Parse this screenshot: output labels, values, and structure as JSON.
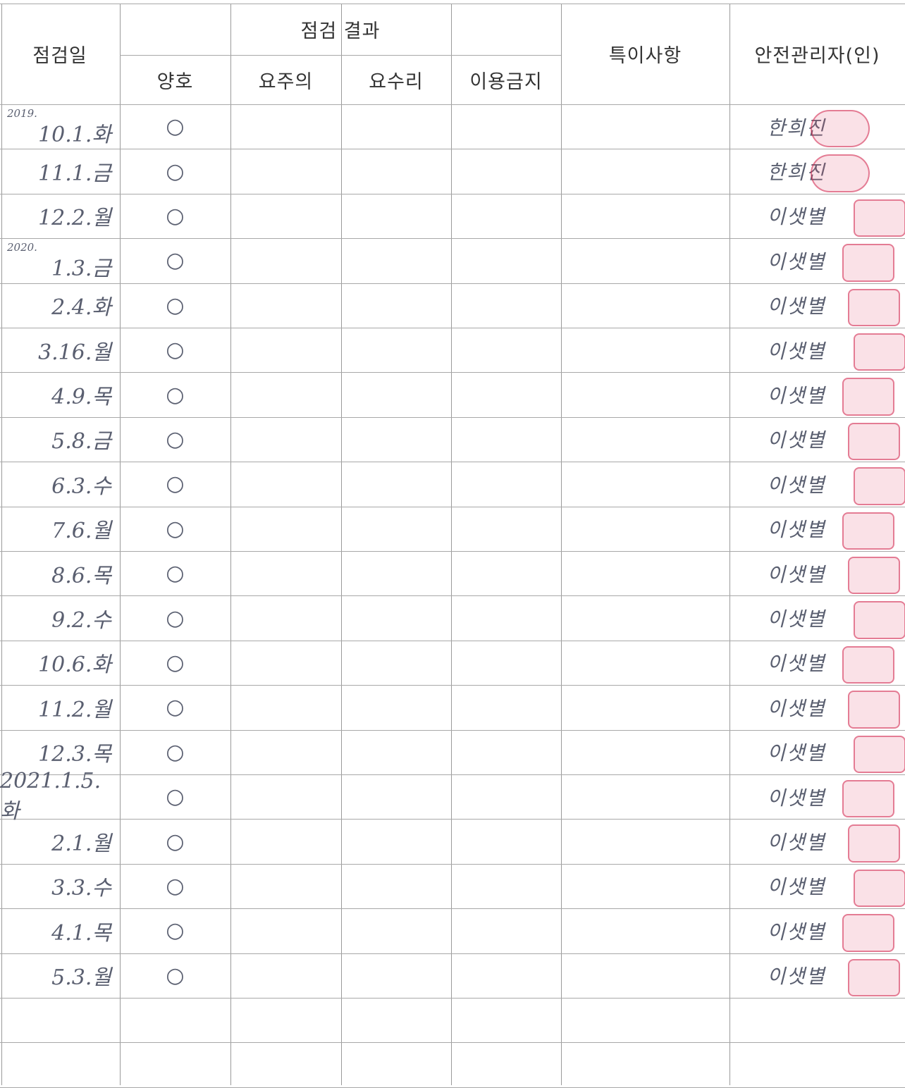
{
  "header": {
    "date": "점검일",
    "result": "점검 결과",
    "sub": [
      "양호",
      "요주의",
      "요수리",
      "이용금지"
    ],
    "notes": "특이사항",
    "manager": "안전관리자(인)"
  },
  "rows": [
    {
      "year": "2019.",
      "date": "10.1.화",
      "result": "○",
      "manager": "한희진"
    },
    {
      "date": "11.1.금",
      "result": "○",
      "manager": "한희진"
    },
    {
      "date": "12.2.월",
      "result": "○",
      "manager": "이샛별"
    },
    {
      "year": "2020.",
      "date": "1.3.금",
      "result": "○",
      "manager": "이샛별"
    },
    {
      "date": "2.4.화",
      "result": "○",
      "manager": "이샛별"
    },
    {
      "date": "3.16.월",
      "result": "○",
      "manager": "이샛별"
    },
    {
      "date": "4.9.목",
      "result": "○",
      "manager": "이샛별"
    },
    {
      "date": "5.8.금",
      "result": "○",
      "manager": "이샛별"
    },
    {
      "date": "6.3.수",
      "result": "○",
      "manager": "이샛별"
    },
    {
      "date": "7.6.월",
      "result": "○",
      "manager": "이샛별"
    },
    {
      "date": "8.6.목",
      "result": "○",
      "manager": "이샛별"
    },
    {
      "date": "9.2.수",
      "result": "○",
      "manager": "이샛별"
    },
    {
      "date": "10.6.화",
      "result": "○",
      "manager": "이샛별"
    },
    {
      "date": "11.2.월",
      "result": "○",
      "manager": "이샛별"
    },
    {
      "date": "12.3.목",
      "result": "○",
      "manager": "이샛별"
    },
    {
      "date": "2021.1.5.화",
      "result": "○",
      "manager": "이샛별"
    },
    {
      "date": "2.1.월",
      "result": "○",
      "manager": "이샛별"
    },
    {
      "date": "3.3.수",
      "result": "○",
      "manager": "이샛별"
    },
    {
      "date": "4.1.목",
      "result": "○",
      "manager": "이샛별"
    },
    {
      "date": "5.3.월",
      "result": "○",
      "manager": "이샛별"
    }
  ]
}
